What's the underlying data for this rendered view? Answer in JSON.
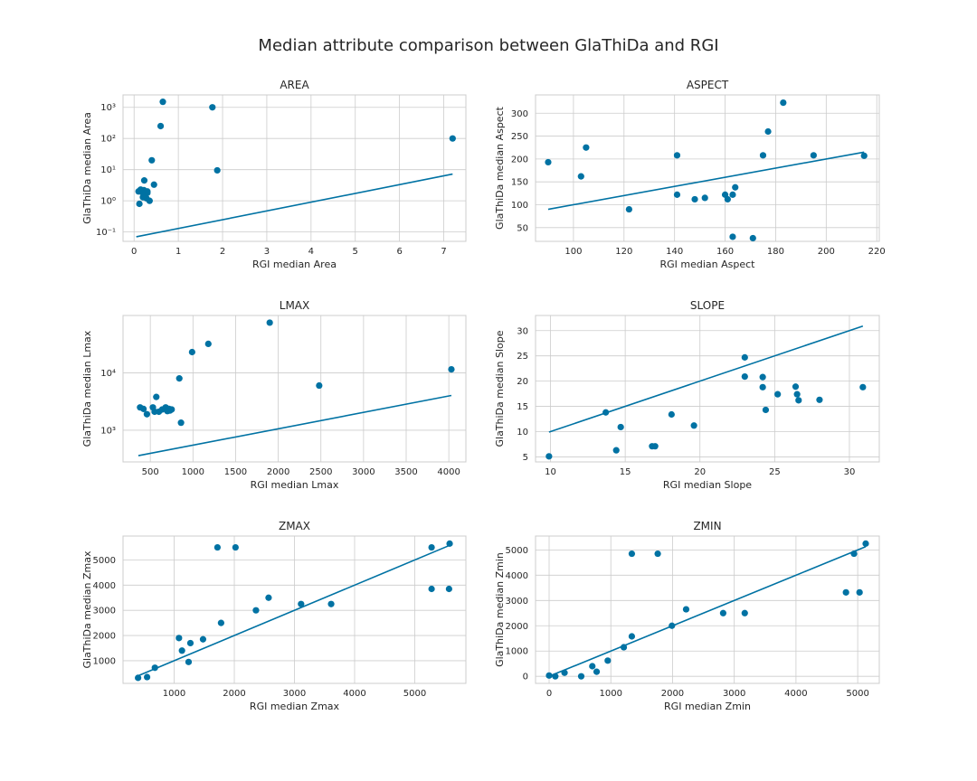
{
  "figure": {
    "title": "Median attribute comparison between GlaThiDa and RGI",
    "colors": {
      "marker": "#0072a3",
      "line": "#0072a3",
      "grid": "#cccccc",
      "frame": "#cccccc",
      "text": "#262626"
    }
  },
  "chart_data": [
    {
      "type": "scatter",
      "title": "AREA",
      "xlabel": "RGI median Area",
      "ylabel": "GlaThiDa median Area",
      "xscale": "linear",
      "yscale": "log",
      "xlim": [
        -0.25,
        7.5
      ],
      "ylim": [
        0.05,
        2500
      ],
      "xticks": [
        0,
        1,
        2,
        3,
        4,
        5,
        6,
        7
      ],
      "xtick_labels": [
        "0",
        "1",
        "2",
        "3",
        "4",
        "5",
        "6",
        "7"
      ],
      "yticks": [
        0.1,
        1,
        10,
        100,
        1000
      ],
      "ytick_labels": [
        "10⁻¹",
        "10⁰",
        "10¹",
        "10²",
        "10³"
      ],
      "grid": true,
      "x": [
        0.65,
        0.6,
        1.77,
        7.2,
        1.88,
        0.4,
        0.45,
        0.23,
        0.1,
        0.15,
        0.22,
        0.3,
        0.2,
        0.25,
        0.35,
        0.12,
        0.3,
        0.18,
        0.28,
        0.14
      ],
      "y": [
        1500,
        250,
        1000,
        100,
        9.5,
        20,
        3.3,
        4.5,
        2.0,
        2.3,
        2.2,
        1.8,
        1.3,
        1.6,
        1.0,
        0.8,
        2.0,
        1.9,
        1.2,
        2.1
      ],
      "fit_line": {
        "x": [
          0.05,
          7.2
        ],
        "y": [
          0.07,
          7.2
        ]
      }
    },
    {
      "type": "scatter",
      "title": "ASPECT",
      "xlabel": "RGI median Aspect",
      "ylabel": "GlaThiDa median Aspect",
      "xscale": "linear",
      "yscale": "linear",
      "xlim": [
        85,
        221
      ],
      "ylim": [
        20,
        340
      ],
      "xticks": [
        100,
        120,
        140,
        160,
        180,
        200,
        220
      ],
      "xtick_labels": [
        "100",
        "120",
        "140",
        "160",
        "180",
        "200",
        "220"
      ],
      "yticks": [
        50,
        100,
        150,
        200,
        250,
        300
      ],
      "ytick_labels": [
        "50",
        "100",
        "150",
        "200",
        "250",
        "300"
      ],
      "grid": true,
      "x": [
        90,
        103,
        105,
        122,
        141,
        141,
        148,
        152,
        160,
        161,
        163,
        164,
        163,
        171,
        175,
        177,
        183,
        195,
        215
      ],
      "y": [
        193,
        162,
        225,
        90,
        208,
        122,
        112,
        115,
        122,
        112,
        122,
        138,
        30,
        27,
        208,
        260,
        323,
        208,
        207
      ],
      "fit_line": {
        "x": [
          90,
          215
        ],
        "y": [
          90,
          215
        ]
      }
    },
    {
      "type": "scatter",
      "title": "LMAX",
      "xlabel": "RGI median Lmax",
      "ylabel": "GlaThiDa median Lmax",
      "xscale": "linear",
      "yscale": "log",
      "xlim": [
        180,
        4200
      ],
      "ylim": [
        280,
        100000
      ],
      "xticks": [
        500,
        1000,
        1500,
        2000,
        2500,
        3000,
        3500,
        4000
      ],
      "xtick_labels": [
        "500",
        "1000",
        "1500",
        "2000",
        "2500",
        "3000",
        "3500",
        "4000"
      ],
      "yticks": [
        1000,
        10000
      ],
      "ytick_labels": [
        "10³",
        "10⁴"
      ],
      "grid": true,
      "x": [
        1900,
        1180,
        990,
        840,
        2480,
        4030,
        570,
        530,
        380,
        420,
        460,
        550,
        640,
        680,
        700,
        720,
        730,
        750,
        600,
        860
      ],
      "y": [
        75000,
        32000,
        23000,
        8000,
        6000,
        11500,
        3800,
        2500,
        2500,
        2350,
        1900,
        2100,
        2300,
        2500,
        2150,
        2350,
        2200,
        2300,
        2100,
        1350
      ],
      "fit_line": {
        "x": [
          360,
          4030
        ],
        "y": [
          360,
          4030
        ]
      }
    },
    {
      "type": "scatter",
      "title": "SLOPE",
      "xlabel": "RGI median Slope",
      "ylabel": "GlaThiDa median Slope",
      "xscale": "linear",
      "yscale": "linear",
      "xlim": [
        9,
        32
      ],
      "ylim": [
        4,
        33
      ],
      "xticks": [
        10,
        15,
        20,
        25,
        30
      ],
      "xtick_labels": [
        "10",
        "15",
        "20",
        "25",
        "30"
      ],
      "yticks": [
        5,
        10,
        15,
        20,
        25,
        30
      ],
      "ytick_labels": [
        "5",
        "10",
        "15",
        "20",
        "25",
        "30"
      ],
      "grid": true,
      "x": [
        9.9,
        13.7,
        14.4,
        14.7,
        16.8,
        17.0,
        18.1,
        19.6,
        23.0,
        23.0,
        24.2,
        24.4,
        25.2,
        24.2,
        26.4,
        26.5,
        26.6,
        28.0,
        30.9
      ],
      "y": [
        5.1,
        13.8,
        6.3,
        10.9,
        7.1,
        7.1,
        13.4,
        11.2,
        24.7,
        20.9,
        20.8,
        14.3,
        17.4,
        18.8,
        18.9,
        17.4,
        16.2,
        16.3,
        18.8
      ],
      "fit_line": {
        "x": [
          9.9,
          30.9
        ],
        "y": [
          9.9,
          30.9
        ]
      }
    },
    {
      "type": "scatter",
      "title": "ZMAX",
      "xlabel": "RGI median Zmax",
      "ylabel": "GlaThiDa median Zmax",
      "xscale": "linear",
      "yscale": "linear",
      "xlim": [
        150,
        5850
      ],
      "ylim": [
        100,
        5950
      ],
      "xticks": [
        1000,
        2000,
        3000,
        4000,
        5000
      ],
      "xtick_labels": [
        "1000",
        "2000",
        "3000",
        "4000",
        "5000"
      ],
      "yticks": [
        1000,
        2000,
        3000,
        4000,
        5000
      ],
      "ytick_labels": [
        "1000",
        "2000",
        "3000",
        "4000",
        "5000"
      ],
      "grid": true,
      "x": [
        1720,
        2020,
        5280,
        5580,
        5280,
        5570,
        3610,
        3110,
        2570,
        2360,
        1780,
        1080,
        1130,
        1270,
        1480,
        1240,
        680,
        550,
        400
      ],
      "y": [
        5500,
        5500,
        5500,
        5650,
        3850,
        3850,
        3250,
        3250,
        3500,
        3000,
        2500,
        1900,
        1400,
        1700,
        1850,
        950,
        720,
        350,
        320
      ],
      "fit_line": {
        "x": [
          400,
          5580
        ],
        "y": [
          400,
          5580
        ]
      }
    },
    {
      "type": "scatter",
      "title": "ZMIN",
      "xlabel": "RGI median Zmin",
      "ylabel": "GlaThiDa median Zmin",
      "xscale": "linear",
      "yscale": "linear",
      "xlim": [
        -220,
        5350
      ],
      "ylim": [
        -280,
        5550
      ],
      "xticks": [
        0,
        1000,
        2000,
        3000,
        4000,
        5000
      ],
      "xtick_labels": [
        "0",
        "1000",
        "2000",
        "3000",
        "4000",
        "5000"
      ],
      "yticks": [
        0,
        1000,
        2000,
        3000,
        4000,
        5000
      ],
      "ytick_labels": [
        "0",
        "1000",
        "2000",
        "3000",
        "4000",
        "5000"
      ],
      "grid": true,
      "x": [
        0,
        100,
        250,
        520,
        700,
        770,
        950,
        1210,
        1340,
        1340,
        1760,
        1990,
        2220,
        2820,
        3170,
        4810,
        4940,
        5030,
        5130
      ],
      "y": [
        30,
        0,
        140,
        0,
        400,
        180,
        620,
        1150,
        1580,
        4850,
        4850,
        2000,
        2650,
        2500,
        2500,
        3320,
        4850,
        3320,
        5250
      ],
      "fit_line": {
        "x": [
          0,
          5130
        ],
        "y": [
          0,
          5130
        ]
      }
    }
  ]
}
